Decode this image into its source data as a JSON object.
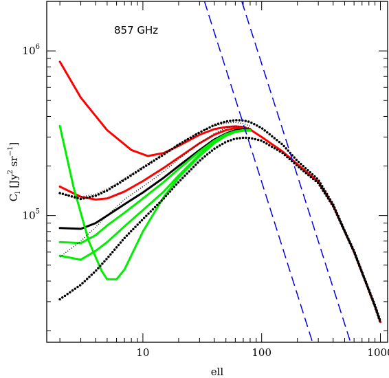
{
  "chart_data": {
    "type": "line",
    "title": "",
    "annotation": "857 GHz",
    "xlabel": "ell",
    "ylabel": "C_l [Jy^2 sr^-1]",
    "ylabel_parts": {
      "base": "C",
      "sub": "l",
      "unit_open": " [Jy",
      "sup1": "2",
      "mid": " sr",
      "sup2": "−1",
      "unit_close": "]"
    },
    "xscale": "log",
    "yscale": "log",
    "xlim": [
      1.55,
      1150
    ],
    "ylim": [
      17000,
      2000000
    ],
    "x_ticks": [
      {
        "value": 10,
        "label": "10"
      },
      {
        "value": 100,
        "label": "100"
      },
      {
        "value": 1000,
        "label": "1000"
      }
    ],
    "y_ticks": [
      {
        "value": 100000,
        "label": "10",
        "exp": "5"
      },
      {
        "value": 1000000,
        "label": "10",
        "exp": "6"
      }
    ],
    "grid": false,
    "legend": "none",
    "series": [
      {
        "color": "#ff0000",
        "style": "solid",
        "width": 3,
        "x": [
          2,
          3,
          5,
          8,
          11,
          15,
          20,
          30,
          40,
          50,
          60,
          70,
          80
        ],
        "y": [
          860000,
          520000,
          330000,
          250000,
          230000,
          240000,
          265000,
          310000,
          335000,
          345000,
          348000,
          345000,
          333000
        ]
      },
      {
        "color": "#ff0000",
        "style": "solid",
        "width": 3,
        "x": [
          2,
          3,
          4,
          5,
          7,
          10,
          15,
          20,
          30,
          40,
          50,
          60,
          70,
          80
        ],
        "y": [
          150000,
          130000,
          125000,
          127000,
          140000,
          162000,
          195000,
          225000,
          275000,
          310000,
          330000,
          340000,
          340000,
          335000
        ]
      },
      {
        "color": "#ff0000",
        "style": "solid",
        "width": 3,
        "x": [
          80,
          100,
          150,
          200,
          300,
          400,
          500,
          600,
          700,
          800,
          900,
          1000
        ],
        "y": [
          333000,
          300000,
          245000,
          205000,
          160000,
          115000,
          80000,
          60000,
          45000,
          35000,
          28000,
          22500
        ]
      },
      {
        "color": "#000000",
        "style": "solid",
        "width": 3,
        "x": [
          2,
          3,
          4,
          5,
          7,
          10,
          15,
          20,
          30,
          40,
          50,
          60,
          70,
          80
        ],
        "y": [
          84000,
          83000,
          90000,
          100000,
          117000,
          138000,
          170000,
          200000,
          250000,
          290000,
          315000,
          330000,
          335000,
          333000
        ]
      },
      {
        "color": "#00ee00",
        "style": "solid",
        "width": 3,
        "x": [
          2,
          2.6,
          3.5,
          4.5,
          5,
          6,
          7,
          10,
          15,
          20,
          30,
          40,
          50,
          60,
          70,
          80
        ],
        "y": [
          350000,
          150000,
          70000,
          46000,
          41000,
          41000,
          47000,
          80000,
          130000,
          170000,
          230000,
          275000,
          305000,
          322000,
          328000,
          328000
        ]
      },
      {
        "color": "#00ee00",
        "style": "solid",
        "width": 3,
        "x": [
          2,
          3,
          4,
          5,
          7,
          10,
          15,
          20,
          30,
          40,
          50,
          60,
          70,
          80
        ],
        "y": [
          57000,
          54000,
          61000,
          69000,
          86000,
          108000,
          140000,
          175000,
          235000,
          280000,
          308000,
          323000,
          328000,
          328000
        ]
      },
      {
        "color": "#00ee00",
        "style": "solid",
        "width": 3,
        "x": [
          2,
          3,
          4,
          5,
          7,
          10,
          15,
          20,
          30,
          40,
          50,
          60,
          70,
          80
        ],
        "y": [
          69000,
          68000,
          76000,
          87000,
          104000,
          127000,
          160000,
          192000,
          245000,
          285000,
          312000,
          325000,
          330000,
          330000
        ]
      },
      {
        "color": "#000000",
        "style": "dotted",
        "width": 3.5,
        "x": [
          2,
          3,
          4,
          5,
          7,
          10,
          15,
          20,
          30,
          40,
          50,
          60,
          70,
          80,
          100,
          150,
          200,
          300,
          400,
          500,
          600,
          700,
          800,
          900,
          1000
        ],
        "y": [
          137000,
          126000,
          132000,
          142000,
          165000,
          195000,
          235000,
          270000,
          320000,
          355000,
          373000,
          380000,
          378000,
          370000,
          340000,
          270000,
          215000,
          165000,
          117000,
          81000,
          61000,
          45500,
          35500,
          28500,
          22800
        ]
      },
      {
        "color": "#000000",
        "style": "dotted",
        "width": 3.5,
        "x": [
          2,
          3,
          4,
          5,
          7,
          10,
          15,
          20,
          30,
          40,
          50,
          60,
          70,
          80,
          100,
          150,
          200,
          300,
          400,
          500,
          600,
          700,
          800,
          900,
          1000
        ],
        "y": [
          31000,
          38000,
          46000,
          55000,
          73000,
          95000,
          127000,
          160000,
          215000,
          255000,
          280000,
          293000,
          297000,
          296000,
          285000,
          240000,
          200000,
          157000,
          114000,
          80000,
          60000,
          45000,
          35000,
          28000,
          22300
        ]
      },
      {
        "color": "#000000",
        "style": "fine-dotted",
        "width": 1.5,
        "x": [
          2,
          3,
          4,
          5,
          7,
          10,
          15,
          20,
          30,
          40,
          50,
          60,
          70,
          80
        ],
        "y": [
          56000,
          70000,
          85000,
          100000,
          125000,
          150000,
          185000,
          220000,
          275000,
          315000,
          340000,
          350000,
          348000,
          340000
        ]
      },
      {
        "color": "#000000",
        "style": "fine-dotted",
        "width": 1.5,
        "x": [
          2,
          3,
          4,
          5,
          7,
          10,
          15,
          20,
          30,
          40,
          50,
          60,
          70,
          80
        ],
        "y": [
          135000,
          130000,
          135000,
          145000,
          168000,
          198000,
          238000,
          272000,
          322000,
          350000,
          365000,
          368000,
          362000,
          350000
        ]
      },
      {
        "color": "#0000dd",
        "style": "dashed",
        "width": 1.5,
        "x": [
          33,
          268
        ],
        "y": [
          2000000,
          17000
        ]
      },
      {
        "color": "#0000dd",
        "style": "dashed",
        "width": 1.5,
        "x": [
          68,
          560
        ],
        "y": [
          2000000,
          17000
        ]
      }
    ]
  }
}
